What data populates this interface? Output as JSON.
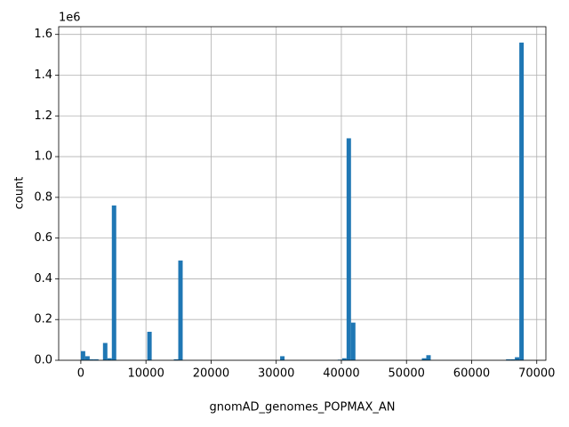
{
  "chart_data": {
    "type": "histogram",
    "x_label": "gnomAD_genomes_POPMAX_AN",
    "y_label": "count",
    "y_offset_label": "1e6",
    "color": "#1f77b4",
    "grid": true,
    "bins": [
      0,
      680,
      1360,
      2040,
      2720,
      3400,
      4080,
      4760,
      5440,
      6120,
      6800,
      7480,
      8160,
      8840,
      9520,
      10200,
      10880,
      11560,
      12240,
      12920,
      13600,
      14280,
      14960,
      15640,
      16320,
      17000,
      17680,
      18360,
      19040,
      19720,
      20400,
      21080,
      21760,
      22440,
      23120,
      23800,
      24480,
      25160,
      25840,
      26520,
      27200,
      27880,
      28560,
      29240,
      29920,
      30600,
      31280,
      31960,
      32640,
      33320,
      34000,
      34680,
      35360,
      36040,
      36720,
      37400,
      38080,
      38760,
      39440,
      40120,
      40800,
      41480,
      42160,
      42840,
      43520,
      44200,
      44880,
      45560,
      46240,
      46920,
      47600,
      48280,
      48960,
      49640,
      50320,
      51000,
      51680,
      52360,
      53040,
      53720,
      54400,
      55080,
      55760,
      56440,
      57120,
      57800,
      58480,
      59160,
      59840,
      60520,
      61200,
      61880,
      62560,
      63240,
      63920,
      64600,
      65280,
      65960,
      66640,
      67320,
      68000
    ],
    "values": [
      45000,
      20000,
      5000,
      5000,
      0,
      85000,
      10000,
      760000,
      0,
      0,
      0,
      0,
      0,
      0,
      0,
      140000,
      0,
      0,
      0,
      0,
      0,
      5000,
      490000,
      0,
      0,
      0,
      0,
      0,
      0,
      0,
      0,
      0,
      0,
      0,
      0,
      0,
      0,
      0,
      0,
      0,
      0,
      0,
      0,
      0,
      0,
      20000,
      0,
      0,
      0,
      0,
      0,
      0,
      0,
      0,
      0,
      0,
      0,
      0,
      3000,
      10000,
      1090000,
      185000,
      0,
      0,
      0,
      0,
      0,
      0,
      0,
      0,
      0,
      0,
      0,
      0,
      0,
      0,
      0,
      10000,
      25000,
      0,
      0,
      0,
      0,
      0,
      0,
      0,
      0,
      0,
      0,
      0,
      0,
      0,
      0,
      0,
      0,
      0,
      5000,
      5000,
      15000,
      1560000
    ],
    "xlim": [
      -3400,
      71400
    ],
    "xticks": [
      0,
      10000,
      20000,
      30000,
      40000,
      50000,
      60000,
      70000
    ],
    "ylim": [
      0,
      1638000
    ],
    "yticks": [
      {
        "value": 0,
        "label": "0.0"
      },
      {
        "value": 200000,
        "label": "0.2"
      },
      {
        "value": 400000,
        "label": "0.4"
      },
      {
        "value": 600000,
        "label": "0.6"
      },
      {
        "value": 800000,
        "label": "0.8"
      },
      {
        "value": 1000000,
        "label": "1.0"
      },
      {
        "value": 1200000,
        "label": "1.2"
      },
      {
        "value": 1400000,
        "label": "1.4"
      },
      {
        "value": 1600000,
        "label": "1.6"
      }
    ]
  }
}
